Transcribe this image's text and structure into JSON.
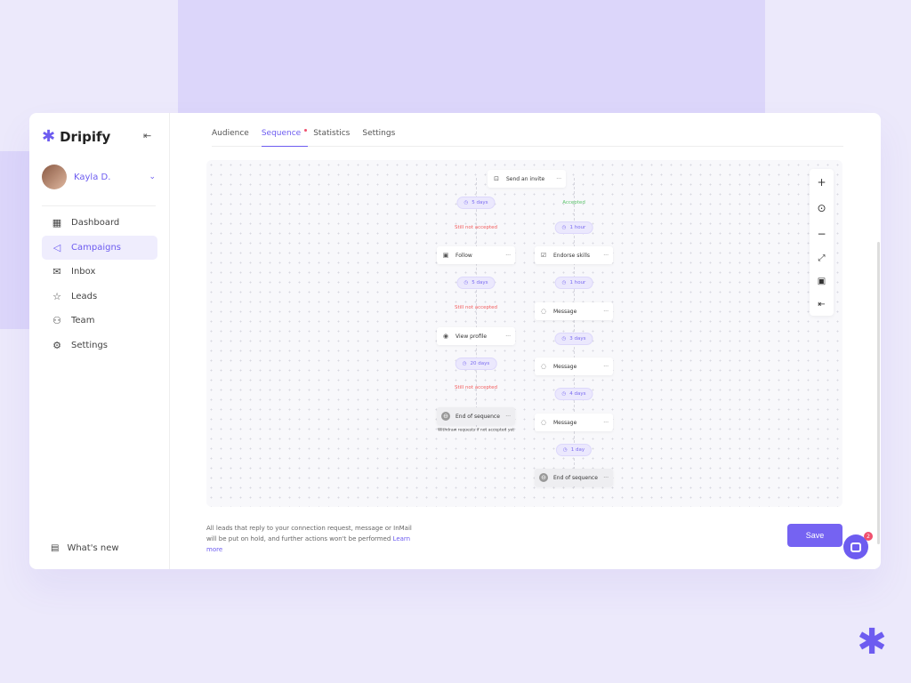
{
  "brand": {
    "name": "Dripify",
    "accent": "#6d5cf0"
  },
  "user": {
    "name": "Kayla D."
  },
  "sidebar": {
    "items": [
      {
        "label": "Dashboard",
        "icon": "grid-icon"
      },
      {
        "label": "Campaigns",
        "icon": "megaphone-icon",
        "active": true
      },
      {
        "label": "Inbox",
        "icon": "mail-icon"
      },
      {
        "label": "Leads",
        "icon": "star-icon"
      },
      {
        "label": "Team",
        "icon": "users-icon"
      },
      {
        "label": "Settings",
        "icon": "gear-icon"
      }
    ],
    "whats_new": "What's new"
  },
  "tabs": [
    "Audience",
    "Sequence",
    "Statistics",
    "Settings"
  ],
  "active_tab": "Sequence",
  "flow": {
    "send_invite": "Send an invite",
    "accepted": "Accepted",
    "not_accepted": "Still not accepted",
    "left": {
      "d1": "5 days",
      "follow": "Follow",
      "d2": "5 days",
      "view": "View profile",
      "d3": "20 days",
      "end": "End of sequence",
      "withdraw": "Withdraw requests if not accepted yet"
    },
    "right": {
      "d1": "1 hour",
      "endorse": "Endorse skills",
      "d2": "1 hour",
      "msg1": "Message",
      "d3": "3 days",
      "msg2": "Message",
      "d4": "4 days",
      "msg3": "Message",
      "d5": "1 day",
      "end": "End of sequence"
    },
    "menu": "···"
  },
  "footer": {
    "note": "All leads that reply to your connection request, message or InMail will be put on hold, and further actions won't be performed",
    "learn_more": "Learn more",
    "save": "Save"
  },
  "chat": {
    "badge": "2"
  }
}
